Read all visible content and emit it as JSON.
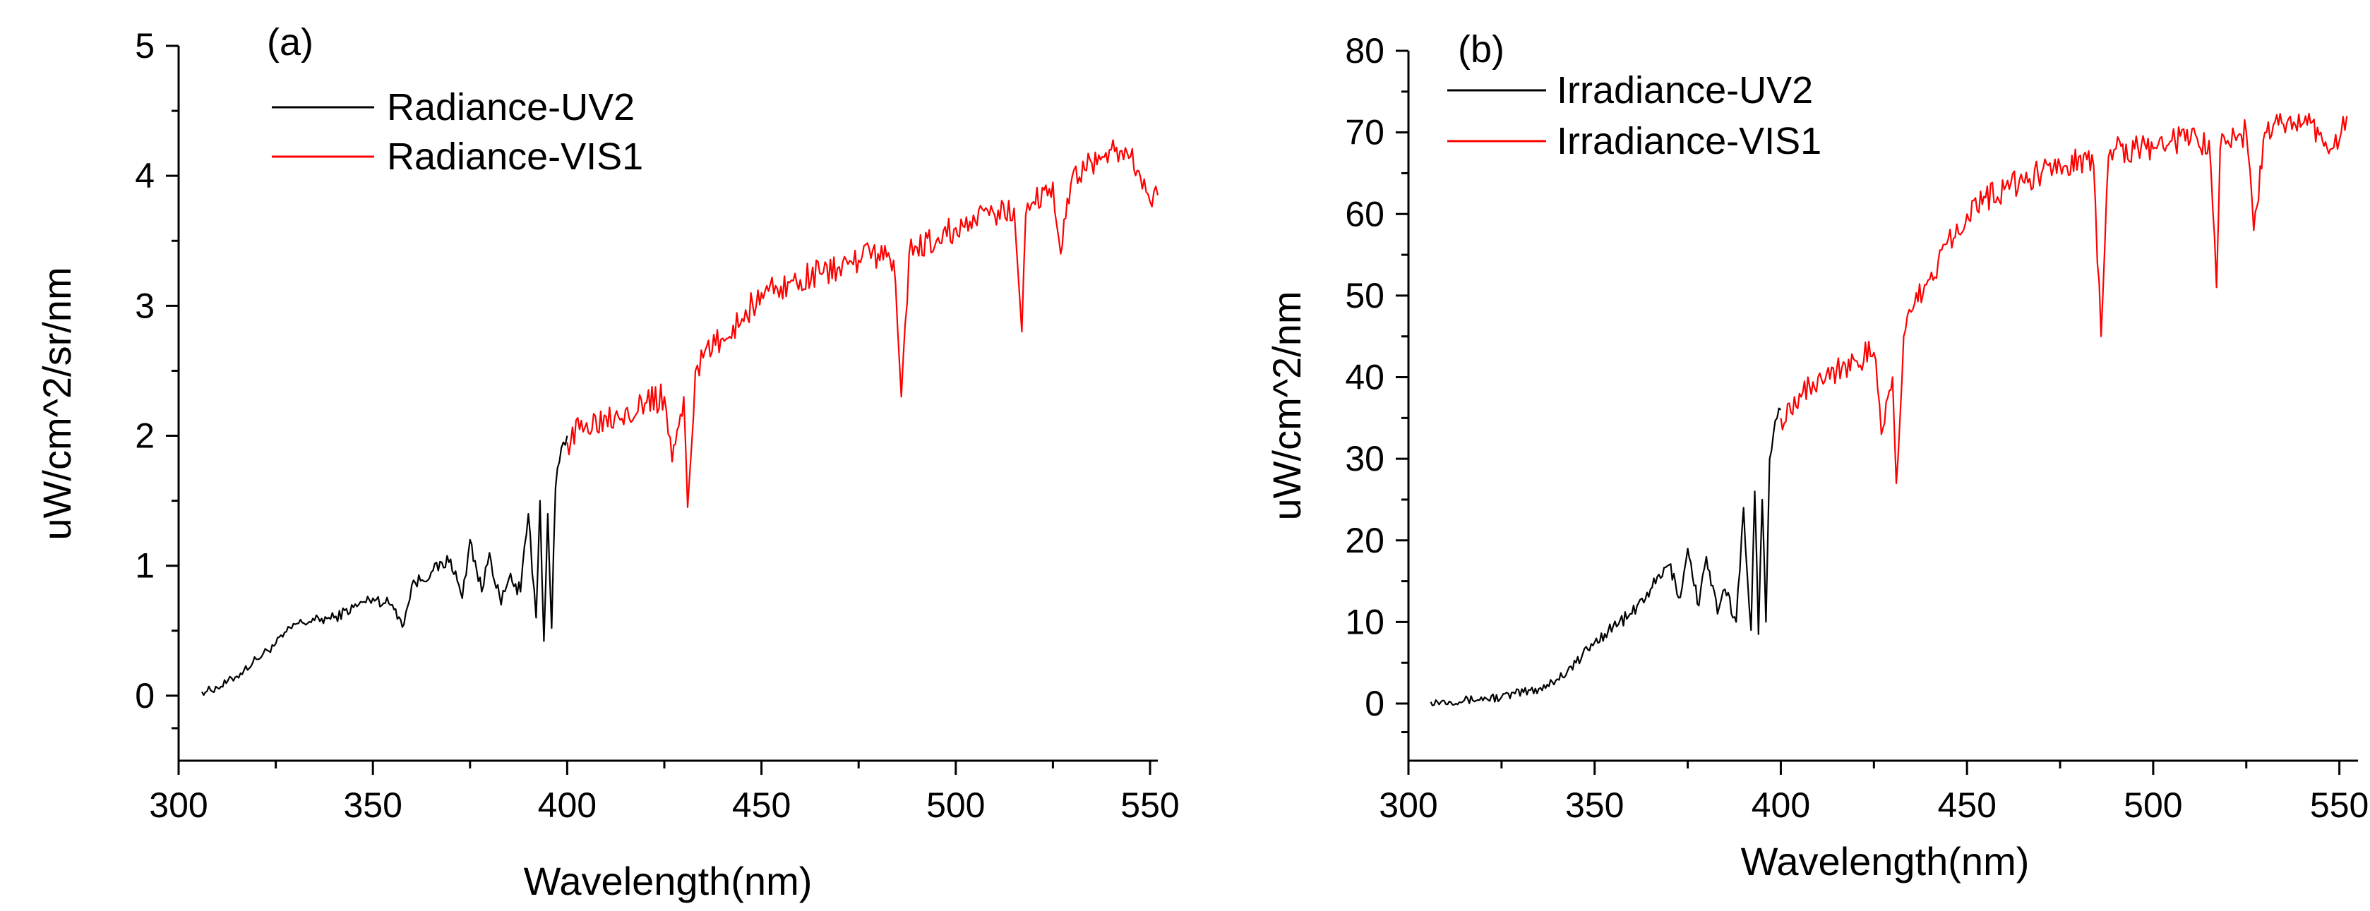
{
  "chart_data": [
    {
      "type": "line",
      "panel_label": "(a)",
      "xlabel": "Wavelength(nm)",
      "ylabel": "uW/cm^2/sr/nm",
      "xlim": [
        300,
        552
      ],
      "ylim": [
        -0.5,
        5
      ],
      "xticks": [
        300,
        350,
        400,
        450,
        500,
        550
      ],
      "xtick_labels": [
        "300",
        "350",
        "400",
        "450",
        "500",
        "550"
      ],
      "yticks": [
        0,
        1,
        2,
        3,
        4,
        5
      ],
      "ytick_labels": [
        "0",
        "1",
        "2",
        "3",
        "4",
        "5"
      ],
      "legend_position": "top-left",
      "series": [
        {
          "name": "Radiance-UV2",
          "color": "#000000",
          "x": [
            306,
            310,
            315,
            320,
            325,
            330,
            335,
            340,
            345,
            350,
            355,
            358,
            360,
            365,
            370,
            373,
            375,
            378,
            380,
            383,
            385,
            388,
            390,
            392,
            393,
            394,
            395,
            396,
            397,
            398,
            399,
            400
          ],
          "y": [
            0.03,
            0.06,
            0.15,
            0.28,
            0.4,
            0.55,
            0.58,
            0.6,
            0.68,
            0.75,
            0.7,
            0.55,
            0.85,
            0.95,
            1.05,
            0.75,
            1.2,
            0.8,
            1.1,
            0.7,
            0.9,
            0.8,
            1.4,
            0.6,
            1.5,
            0.42,
            1.4,
            0.52,
            1.6,
            1.8,
            1.95,
            2.0
          ]
        },
        {
          "name": "Radiance-VIS1",
          "color": "#ff0000",
          "x": [
            400,
            405,
            410,
            415,
            420,
            425,
            427,
            430,
            431,
            433,
            435,
            440,
            445,
            450,
            455,
            460,
            465,
            470,
            475,
            480,
            484,
            486,
            488,
            490,
            495,
            500,
            505,
            510,
            515,
            517,
            518,
            520,
            525,
            527,
            530,
            535,
            540,
            545,
            548,
            550,
            552
          ],
          "y": [
            1.95,
            2.1,
            2.15,
            2.2,
            2.25,
            2.3,
            1.8,
            2.3,
            1.45,
            2.5,
            2.6,
            2.75,
            2.9,
            3.1,
            3.15,
            3.2,
            3.25,
            3.3,
            3.35,
            3.4,
            3.35,
            2.3,
            3.4,
            3.45,
            3.5,
            3.6,
            3.65,
            3.7,
            3.75,
            2.8,
            3.7,
            3.8,
            3.95,
            3.4,
            4.0,
            4.1,
            4.2,
            4.15,
            3.9,
            3.8,
            3.85
          ]
        }
      ]
    },
    {
      "type": "line",
      "panel_label": "(b)",
      "xlabel": "Wavelength(nm)",
      "ylabel": "uW/cm^2/nm",
      "xlim": [
        300,
        555
      ],
      "ylim": [
        -7,
        80
      ],
      "xticks": [
        300,
        350,
        400,
        450,
        500,
        550
      ],
      "xtick_labels": [
        "300",
        "350",
        "400",
        "450",
        "500",
        "550"
      ],
      "yticks": [
        0,
        10,
        20,
        30,
        40,
        50,
        60,
        70,
        80
      ],
      "ytick_labels": [
        "0",
        "10",
        "20",
        "30",
        "40",
        "50",
        "60",
        "70",
        "80"
      ],
      "legend_position": "top-left",
      "series": [
        {
          "name": "Irradiance-UV2",
          "color": "#000000",
          "x": [
            306,
            315,
            325,
            335,
            340,
            345,
            350,
            355,
            360,
            365,
            370,
            373,
            375,
            378,
            380,
            383,
            385,
            388,
            390,
            392,
            393,
            394,
            395,
            396,
            397,
            398,
            399,
            400
          ],
          "y": [
            0.2,
            0.4,
            0.8,
            1.8,
            3.0,
            5.0,
            7.5,
            9.5,
            11.0,
            14.0,
            17.0,
            13.0,
            19.0,
            12.0,
            18.0,
            11.0,
            14.0,
            10.0,
            24.0,
            9.0,
            26.0,
            8.5,
            25.0,
            10.0,
            30.0,
            33.0,
            35.0,
            36.0
          ]
        },
        {
          "name": "Irradiance-VIS1",
          "color": "#ff0000",
          "x": [
            400,
            405,
            410,
            415,
            420,
            425,
            427,
            430,
            431,
            433,
            435,
            440,
            445,
            450,
            455,
            460,
            465,
            470,
            475,
            480,
            484,
            486,
            488,
            490,
            495,
            500,
            505,
            510,
            515,
            517,
            518,
            520,
            525,
            527,
            530,
            535,
            540,
            545,
            548,
            550,
            552
          ],
          "y": [
            35,
            38,
            40,
            41,
            42,
            43,
            33,
            40,
            27,
            45,
            48,
            52,
            57,
            60,
            62,
            63,
            64,
            65,
            66,
            67,
            66,
            45,
            67,
            68,
            68,
            68,
            69,
            69,
            69,
            51,
            68,
            69,
            70,
            58,
            70,
            71,
            71,
            70,
            68,
            69,
            72
          ]
        }
      ]
    }
  ]
}
